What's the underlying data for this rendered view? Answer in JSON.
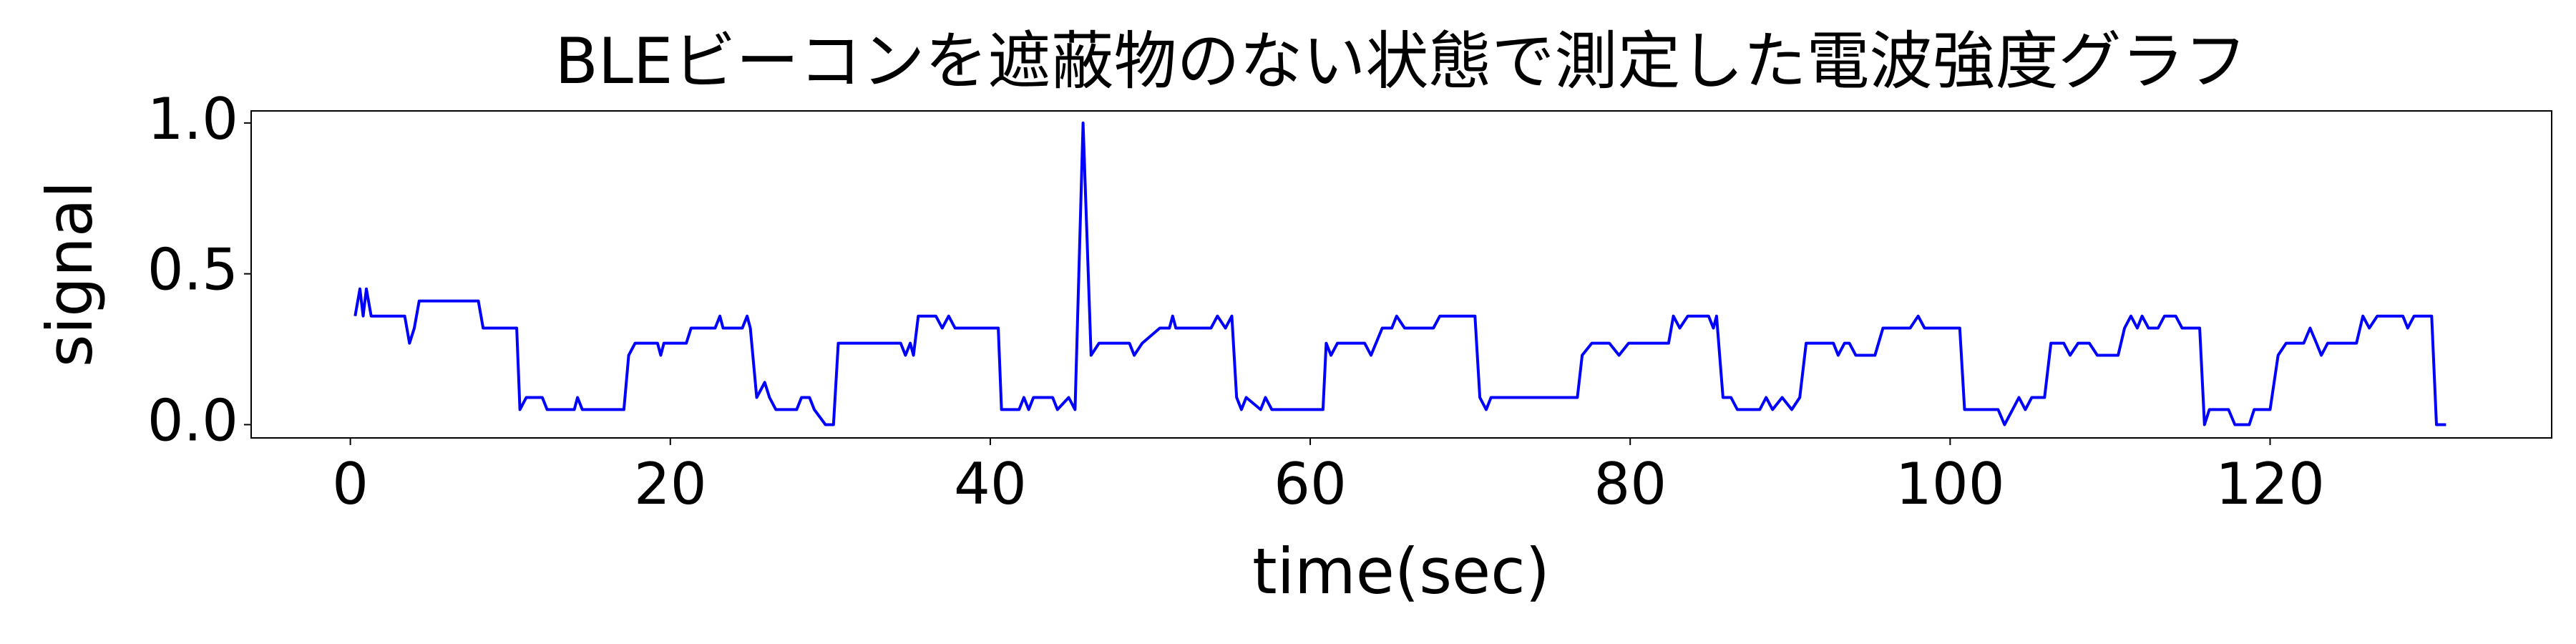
{
  "chart_data": {
    "type": "line",
    "title": "BLEビーコンを遮蔽物のない状態で測定した電波強度グラフ",
    "xlabel": "time(sec)",
    "ylabel": "signal",
    "xlim": [
      -6.2,
      137.6
    ],
    "ylim": [
      -0.044,
      1.04
    ],
    "xticks": [
      0,
      20,
      40,
      60,
      80,
      100,
      120
    ],
    "yticks": [
      {
        "value": 0,
        "label": "0.0"
      },
      {
        "value": 0.5,
        "label": "0.5"
      },
      {
        "value": 1,
        "label": "1.0"
      }
    ],
    "grid": false,
    "series": [
      {
        "color": "#0000ff",
        "x": [
          0.3,
          0.6,
          0.8,
          1.0,
          1.3,
          3.4,
          3.7,
          4.0,
          4.3,
          8.0,
          8.3,
          10.4,
          10.6,
          11.0,
          12.0,
          12.3,
          14.0,
          14.2,
          14.5,
          17.1,
          17.4,
          17.8,
          19.2,
          19.4,
          19.6,
          21.0,
          21.3,
          22.8,
          23.1,
          23.3,
          24.5,
          24.8,
          25.0,
          25.4,
          25.9,
          26.2,
          26.6,
          27.9,
          28.2,
          28.7,
          29.0,
          29.7,
          30.2,
          30.5,
          34.4,
          34.7,
          35.0,
          35.2,
          35.5,
          36.6,
          37.0,
          37.4,
          37.8,
          40.5,
          40.7,
          41.8,
          42.1,
          42.4,
          42.7,
          43.9,
          44.2,
          44.9,
          45.3,
          45.8,
          46.3,
          46.8,
          48.7,
          49.0,
          49.5,
          50.6,
          51.2,
          51.4,
          51.6,
          53.8,
          54.2,
          54.7,
          55.1,
          55.4,
          55.7,
          56.0,
          56.9,
          57.2,
          57.6,
          60.8,
          61.0,
          61.3,
          61.7,
          63.4,
          63.8,
          64.5,
          65.1,
          65.4,
          65.9,
          67.7,
          68.1,
          70.3,
          70.6,
          71.0,
          71.3,
          76.7,
          77.0,
          77.6,
          78.7,
          79.3,
          79.9,
          82.4,
          82.7,
          83.1,
          83.6,
          84.9,
          85.2,
          85.4,
          85.8,
          86.3,
          86.7,
          88.1,
          88.5,
          88.9,
          89.5,
          90.1,
          90.6,
          91.0,
          92.7,
          93.0,
          93.4,
          93.7,
          94.1,
          95.3,
          95.8,
          97.5,
          98.0,
          98.4,
          100.6,
          100.9,
          103.0,
          103.4,
          103.9,
          104.3,
          104.7,
          105.1,
          105.9,
          106.3,
          107.1,
          107.5,
          108.0,
          108.7,
          109.2,
          110.5,
          110.9,
          111.3,
          111.7,
          112.0,
          112.4,
          113.0,
          113.4,
          114.1,
          114.5,
          115.6,
          115.9,
          116.2,
          117.4,
          117.8,
          118.7,
          119.0,
          120.0,
          120.5,
          121.0,
          122.1,
          122.5,
          122.9,
          123.2,
          123.6,
          125.4,
          125.8,
          126.2,
          126.7,
          128.3,
          128.6,
          129.0,
          130.1,
          130.4,
          131.0
        ],
        "values": [
          0.36,
          0.45,
          0.36,
          0.45,
          0.36,
          0.36,
          0.27,
          0.32,
          0.41,
          0.41,
          0.32,
          0.32,
          0.05,
          0.09,
          0.09,
          0.05,
          0.05,
          0.09,
          0.05,
          0.05,
          0.23,
          0.27,
          0.27,
          0.23,
          0.27,
          0.27,
          0.32,
          0.32,
          0.36,
          0.32,
          0.32,
          0.36,
          0.32,
          0.09,
          0.14,
          0.09,
          0.05,
          0.05,
          0.09,
          0.09,
          0.05,
          0.0,
          0.0,
          0.27,
          0.27,
          0.23,
          0.27,
          0.23,
          0.36,
          0.36,
          0.32,
          0.36,
          0.32,
          0.32,
          0.05,
          0.05,
          0.09,
          0.05,
          0.09,
          0.09,
          0.05,
          0.09,
          0.05,
          1.0,
          0.23,
          0.27,
          0.27,
          0.23,
          0.27,
          0.32,
          0.32,
          0.36,
          0.32,
          0.32,
          0.36,
          0.32,
          0.36,
          0.09,
          0.05,
          0.09,
          0.05,
          0.09,
          0.05,
          0.05,
          0.27,
          0.23,
          0.27,
          0.27,
          0.23,
          0.32,
          0.32,
          0.36,
          0.32,
          0.32,
          0.36,
          0.36,
          0.09,
          0.05,
          0.09,
          0.09,
          0.23,
          0.27,
          0.27,
          0.23,
          0.27,
          0.27,
          0.36,
          0.32,
          0.36,
          0.36,
          0.32,
          0.36,
          0.09,
          0.09,
          0.05,
          0.05,
          0.09,
          0.05,
          0.09,
          0.05,
          0.09,
          0.27,
          0.27,
          0.23,
          0.27,
          0.27,
          0.23,
          0.23,
          0.32,
          0.32,
          0.36,
          0.32,
          0.32,
          0.05,
          0.05,
          0.0,
          0.05,
          0.09,
          0.05,
          0.09,
          0.09,
          0.27,
          0.27,
          0.23,
          0.27,
          0.27,
          0.23,
          0.23,
          0.32,
          0.36,
          0.32,
          0.36,
          0.32,
          0.32,
          0.36,
          0.36,
          0.32,
          0.32,
          0.0,
          0.05,
          0.05,
          0.0,
          0.0,
          0.05,
          0.05,
          0.23,
          0.27,
          0.27,
          0.32,
          0.27,
          0.23,
          0.27,
          0.27,
          0.36,
          0.32,
          0.36,
          0.36,
          0.32,
          0.36,
          0.36,
          0.0,
          0.0
        ]
      }
    ]
  }
}
